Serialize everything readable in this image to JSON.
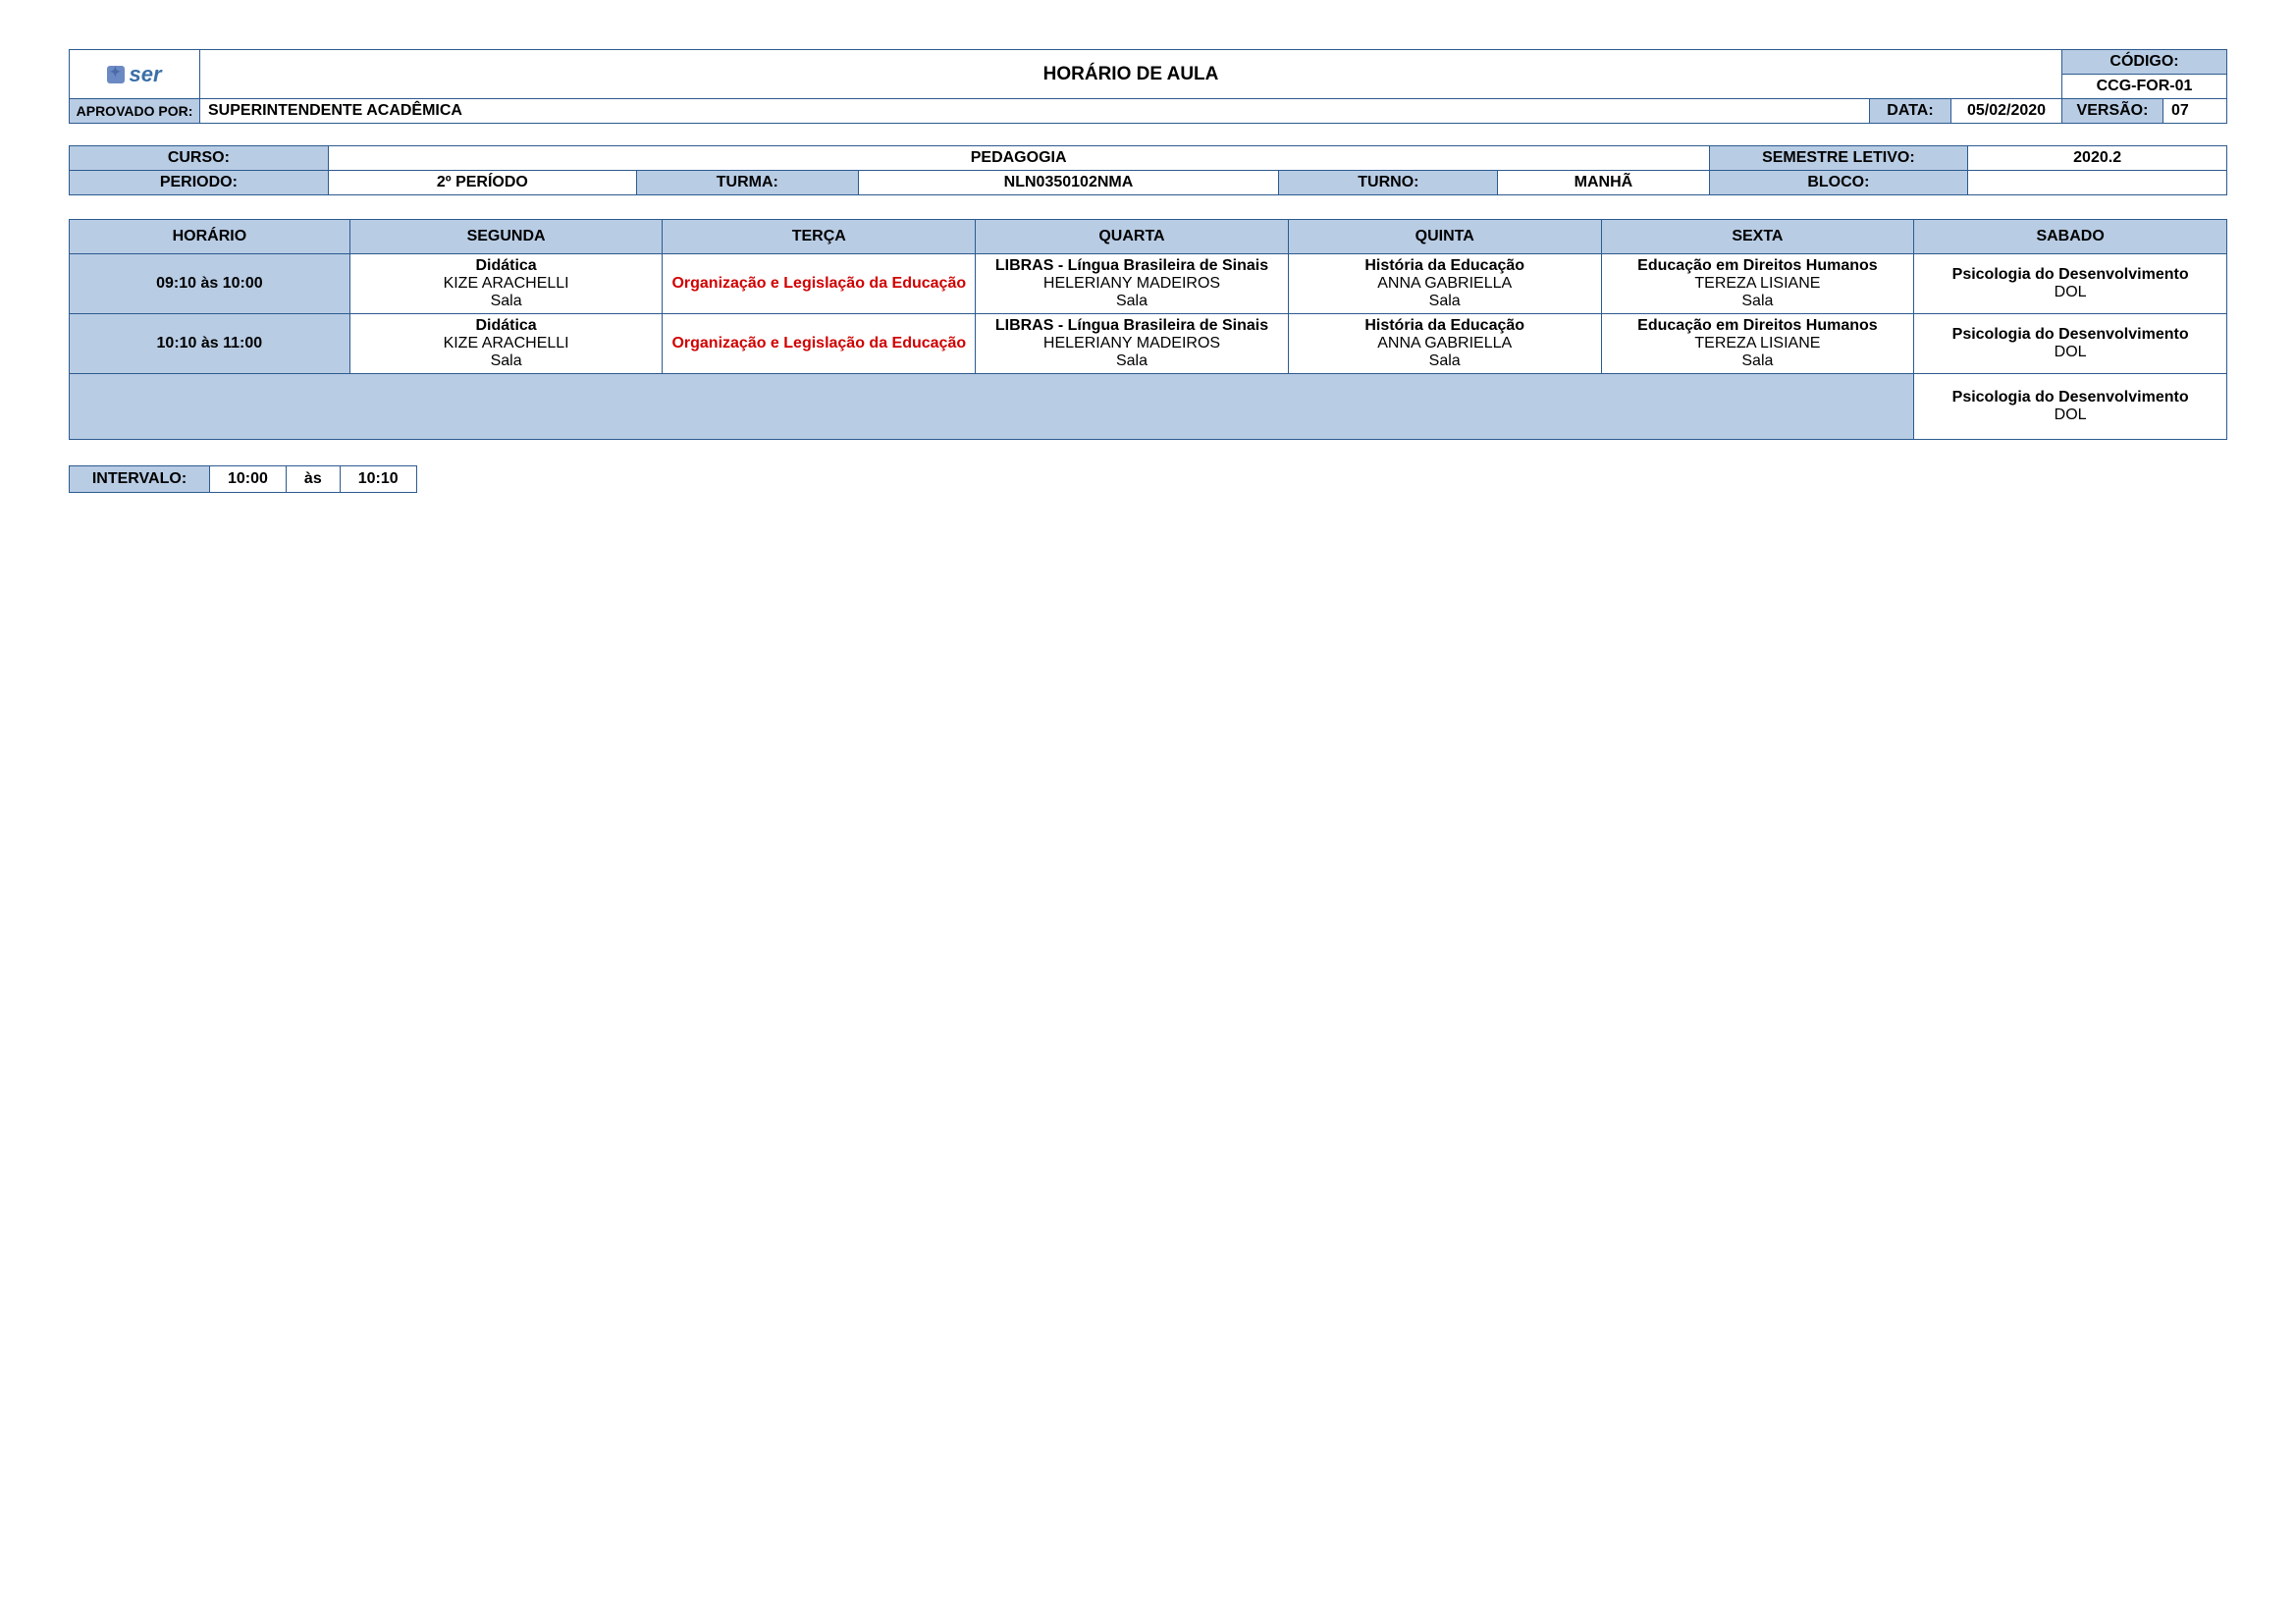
{
  "colors": {
    "header_bg": "#b8cce4",
    "border": "#2c5a8f",
    "red": "#d00000",
    "white": "#ffffff",
    "logo_text": "#3b6fa8"
  },
  "fonts": {
    "family": "Arial",
    "title_size": 19,
    "body_size": 15,
    "weight_bold": "bold"
  },
  "header": {
    "logo_text": "ser",
    "title": "HORÁRIO DE AULA",
    "codigo_label": "CÓDIGO:",
    "codigo_val": "CCG-FOR-01",
    "aprovado_label": "APROVADO POR:",
    "aprovado_val": "SUPERINTENDENTE ACADÊMICA",
    "data_label": "DATA:",
    "data_val": "05/02/2020",
    "versao_label": "VERSÃO:",
    "versao_val": "07"
  },
  "meta": {
    "curso_label": "CURSO:",
    "curso_val": "PEDAGOGIA",
    "semestre_label": "SEMESTRE LETIVO:",
    "semestre_val": "2020.2",
    "periodo_label": "PERIODO:",
    "periodo_val": "2º PERÍODO",
    "turma_label": "TURMA:",
    "turma_val": "NLN0350102NMA",
    "turno_label": "TURNO:",
    "turno_val": "MANHÃ",
    "bloco_label": "BLOCO:",
    "bloco_val": ""
  },
  "schedule": {
    "columns": [
      "HORÁRIO",
      "SEGUNDA",
      "TERÇA",
      "QUARTA",
      "QUINTA",
      "SEXTA",
      "SABADO"
    ],
    "rows": [
      {
        "time": "09:10 às 10:00",
        "cells": [
          {
            "subject": "Didática",
            "teacher": "KIZE ARACHELLI",
            "room": "Sala",
            "red": false
          },
          {
            "subject": "Organização e Legislação da Educação",
            "teacher": "",
            "room": "",
            "red": true
          },
          {
            "subject": "LIBRAS - Língua Brasileira de Sinais",
            "teacher": "HELERIANY MADEIROS",
            "room": "Sala",
            "red": false
          },
          {
            "subject": "História da Educação",
            "teacher": "ANNA GABRIELLA",
            "room": "Sala",
            "red": false
          },
          {
            "subject": "Educação em Direitos Humanos",
            "teacher": "TEREZA LISIANE",
            "room": "Sala",
            "red": false
          },
          {
            "subject": "Psicologia do Desenvolvimento",
            "teacher": "DOL",
            "room": "",
            "red": false
          }
        ]
      },
      {
        "time": "10:10 às 11:00",
        "cells": [
          {
            "subject": "Didática",
            "teacher": "KIZE ARACHELLI",
            "room": "Sala",
            "red": false
          },
          {
            "subject": "Organização e Legislação da Educação",
            "teacher": "",
            "room": "",
            "red": true
          },
          {
            "subject": "LIBRAS - Língua Brasileira de Sinais",
            "teacher": "HELERIANY MADEIROS",
            "room": "Sala",
            "red": false
          },
          {
            "subject": "História da Educação",
            "teacher": "ANNA GABRIELLA",
            "room": "Sala",
            "red": false
          },
          {
            "subject": "Educação em Direitos Humanos",
            "teacher": "TEREZA LISIANE",
            "room": "Sala",
            "red": false
          },
          {
            "subject": "Psicologia do Desenvolvimento",
            "teacher": "DOL",
            "room": "",
            "red": false
          }
        ]
      }
    ],
    "last_row": {
      "subject": "Psicologia do Desenvolvimento",
      "teacher": "DOL",
      "room": ""
    },
    "col_widths_pct": [
      13,
      14.5,
      14.5,
      14.5,
      14.5,
      14.5,
      14.5
    ]
  },
  "intervalo": {
    "label": "INTERVALO:",
    "start": "10:00",
    "sep": "às",
    "end": "10:10"
  }
}
